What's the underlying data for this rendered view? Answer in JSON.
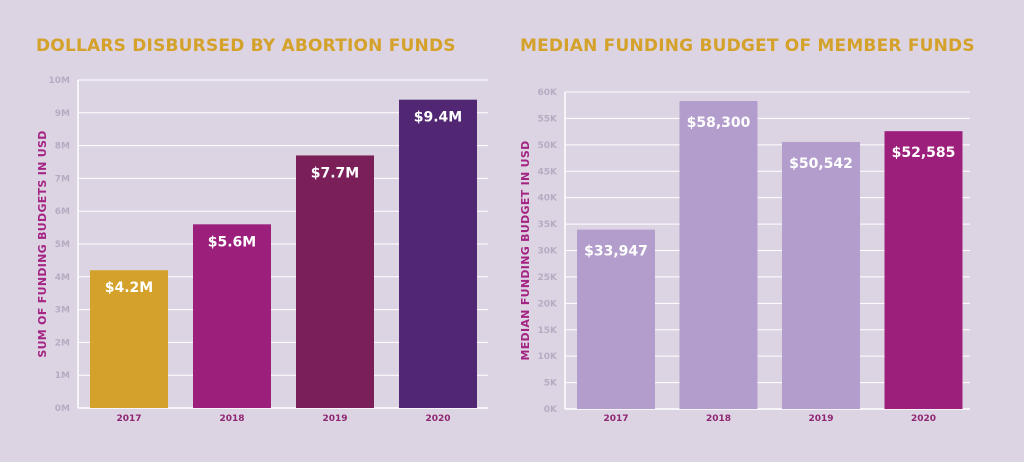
{
  "chart_data": [
    {
      "type": "bar",
      "title": "DOLLARS DISBURSED BY ABORTION FUNDS",
      "ylabel": "SUM OF FUNDING BUDGETS IN USD",
      "xlabel": "",
      "categories": [
        "2017",
        "2018",
        "2019",
        "2020"
      ],
      "values": [
        4.2,
        5.6,
        7.7,
        9.4
      ],
      "data_labels": [
        "$4.2M",
        "$5.6M",
        "$7.7M",
        "$9.4M"
      ],
      "colors": [
        "#d4a22a",
        "#9c1f7c",
        "#7a1f58",
        "#512672"
      ],
      "ylim": [
        0,
        10
      ],
      "yticks": [
        0,
        1,
        2,
        3,
        4,
        5,
        6,
        7,
        8,
        9,
        10
      ],
      "ytick_labels": [
        "0M",
        "1M",
        "2M",
        "3M",
        "4M",
        "5M",
        "6M",
        "7M",
        "8M",
        "9M",
        "10M"
      ],
      "grid": true
    },
    {
      "type": "bar",
      "title": "MEDIAN FUNDING BUDGET OF MEMBER FUNDS",
      "ylabel": "MEDIAN FUNDING BUDGET IN USD",
      "xlabel": "",
      "categories": [
        "2017",
        "2018",
        "2019",
        "2020"
      ],
      "values": [
        33947,
        58300,
        50542,
        52585
      ],
      "data_labels": [
        "$33,947",
        "$58,300",
        "$50,542",
        "$52,585"
      ],
      "colors": [
        "#b39dcc",
        "#b39dcc",
        "#b39dcc",
        "#9c1f7c"
      ],
      "ylim": [
        0,
        60000
      ],
      "yticks": [
        0,
        5000,
        10000,
        15000,
        20000,
        25000,
        30000,
        35000,
        40000,
        45000,
        50000,
        55000,
        60000
      ],
      "ytick_labels": [
        "0K",
        "5K",
        "10K",
        "15K",
        "20K",
        "25K",
        "30K",
        "35K",
        "40K",
        "45K",
        "50K",
        "55K",
        "60K"
      ],
      "grid": true
    }
  ]
}
